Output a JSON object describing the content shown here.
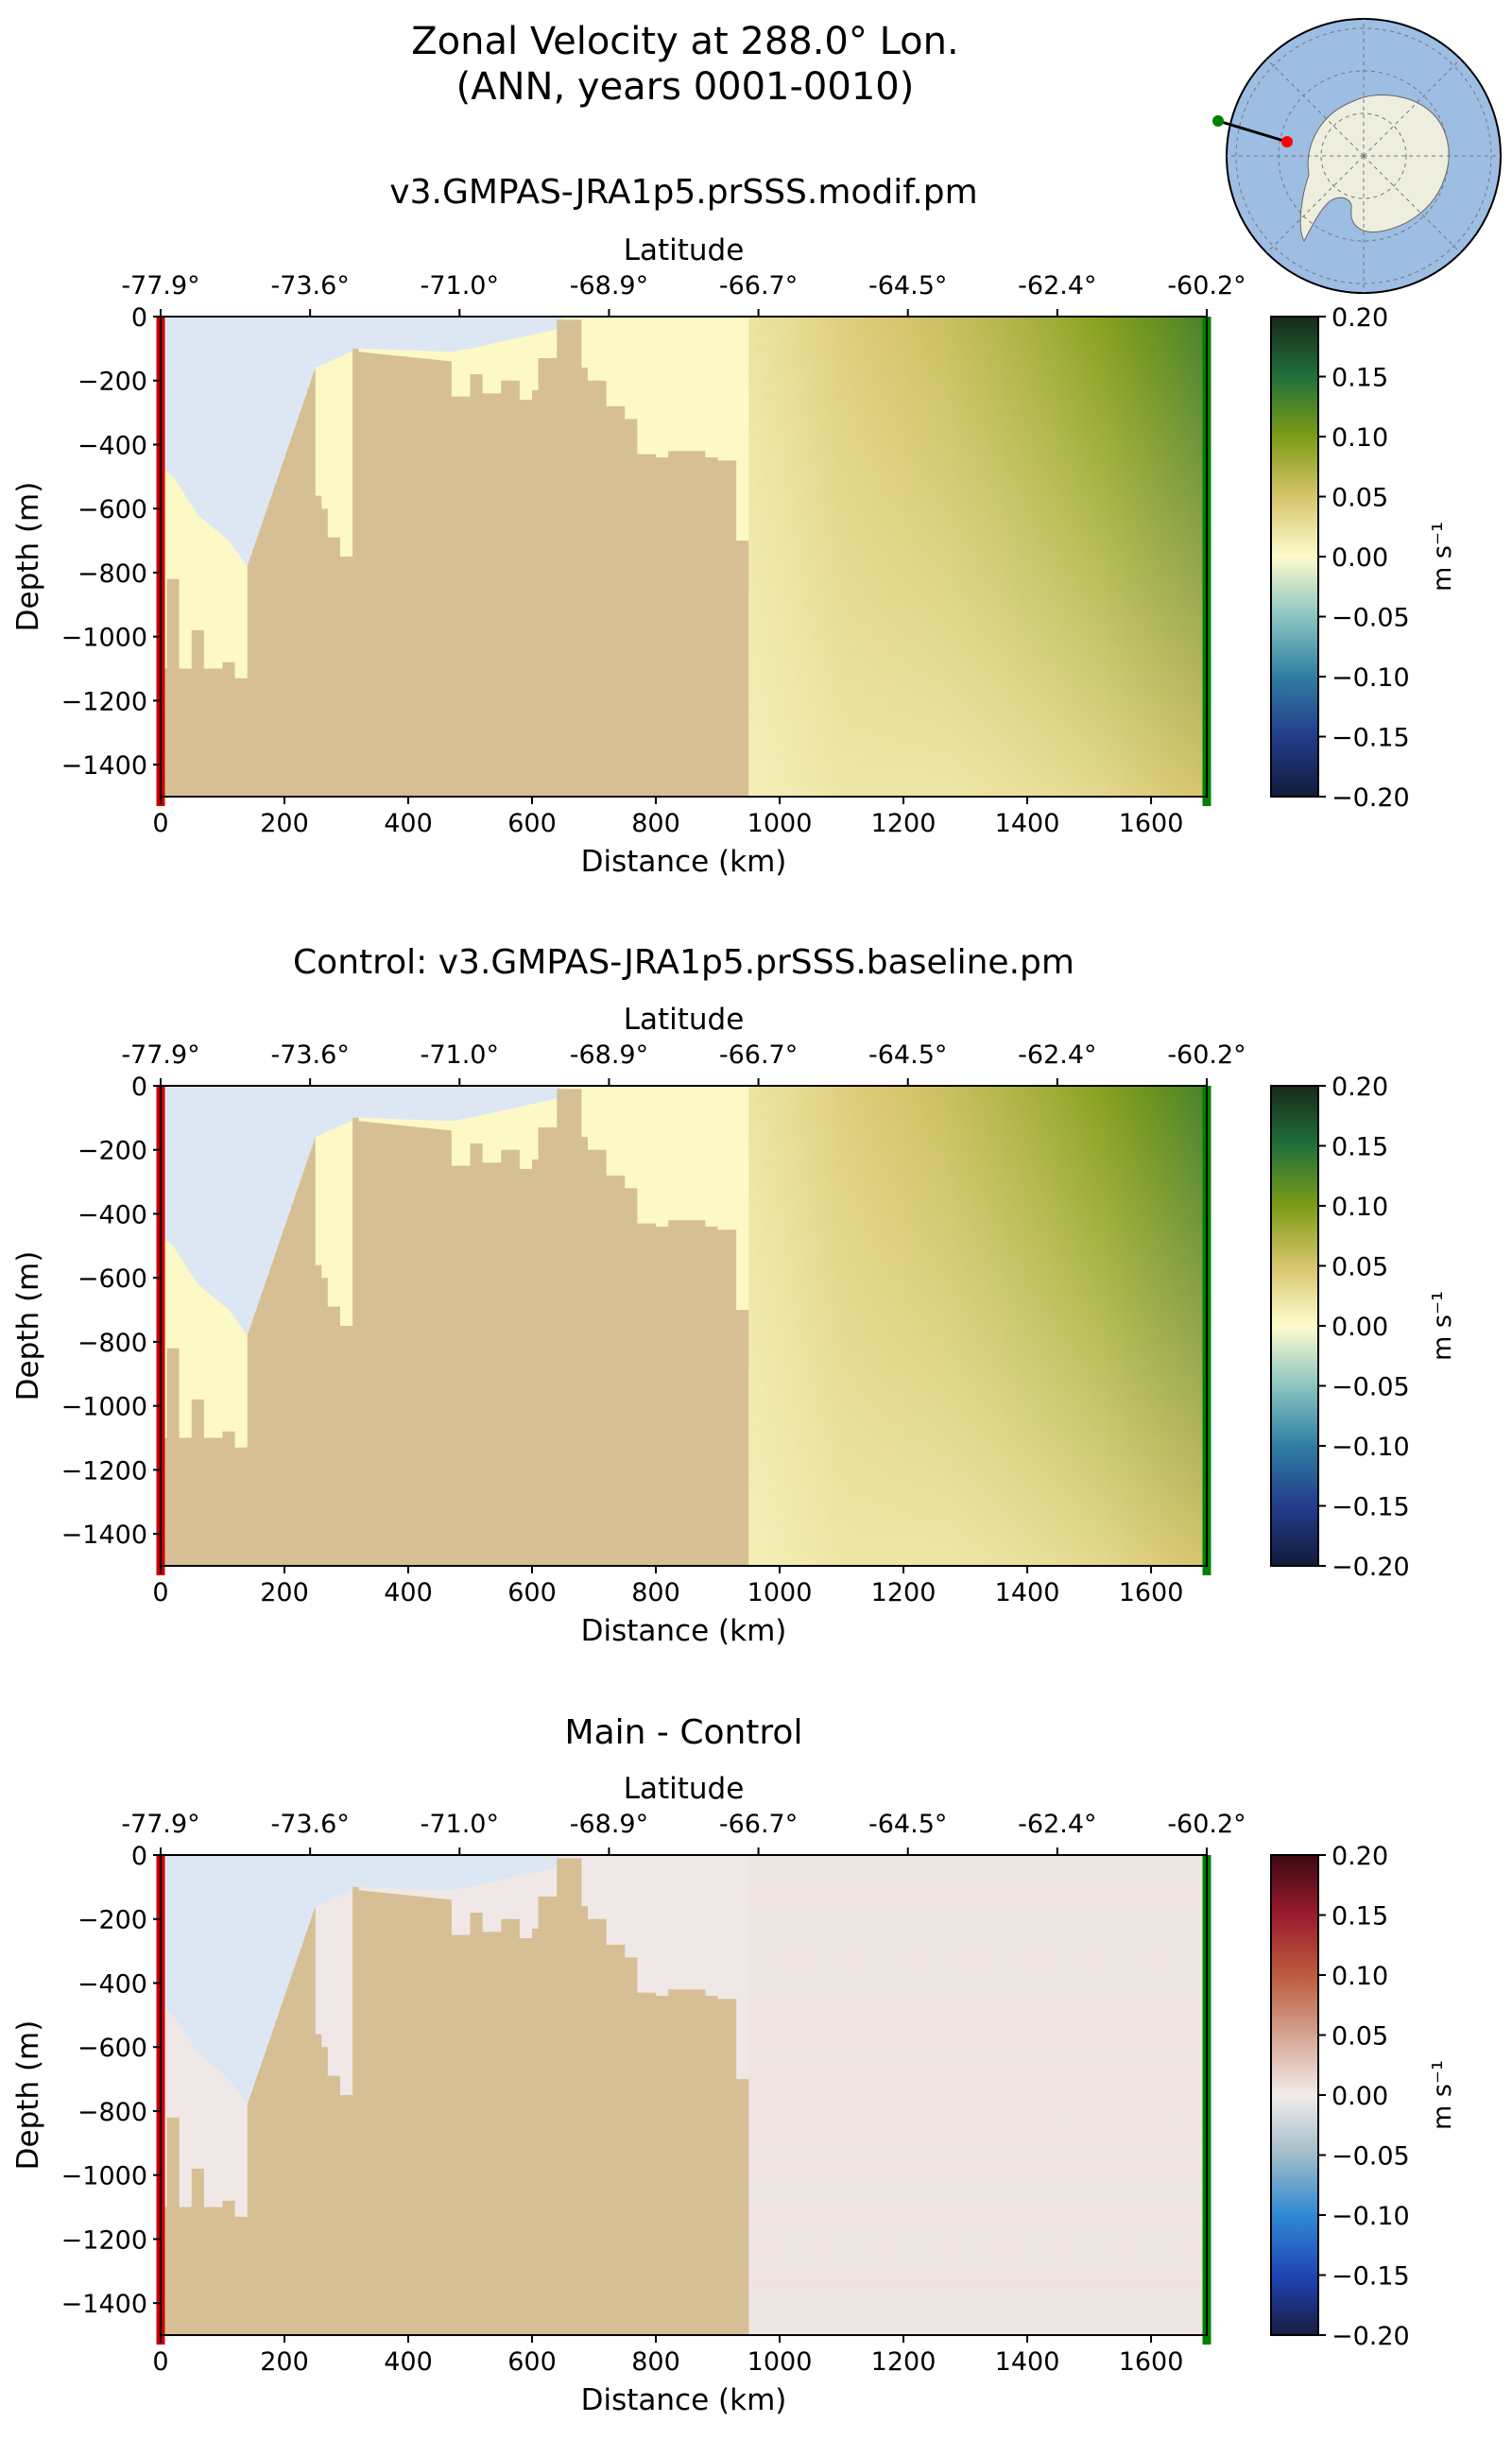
{
  "figure": {
    "title_line1": "Zonal Velocity at 288.0° Lon.",
    "title_line2": "(ANN, years 0001-0010)"
  },
  "inset_map": {
    "description_label": "transect-map",
    "start_color": "#008000",
    "end_color": "#ff0000"
  },
  "colors": {
    "land": "#d7bf95",
    "ice_shelf": "#dde7f4",
    "start_marker": "#008000",
    "end_marker": "#cc0000"
  },
  "chart_data": [
    {
      "type": "heatmap",
      "title": "v3.GMPAS-JRA1p5.prSSS.modif.pm",
      "xlabel": "Distance (km)",
      "ylabel": "Depth (m)",
      "top_xlabel": "Latitude",
      "xlim": [
        0,
        1690
      ],
      "ylim": [
        -1500,
        0
      ],
      "x_ticks": [
        "0",
        "200",
        "400",
        "600",
        "800",
        "1000",
        "1200",
        "1400",
        "1600"
      ],
      "y_ticks": [
        "0",
        "−200",
        "−400",
        "−600",
        "−800",
        "−1000",
        "−1200",
        "−1400"
      ],
      "lat_ticks": [
        "-77.9°",
        "-73.6°",
        "-71.0°",
        "-68.9°",
        "-66.7°",
        "-64.5°",
        "-62.4°",
        "-60.2°"
      ],
      "colorbar": {
        "label": "m s⁻¹",
        "range": [
          -0.2,
          0.2
        ],
        "ticks": [
          "0.20",
          "0.15",
          "0.10",
          "0.05",
          "0.00",
          "−0.05",
          "−0.10",
          "−0.15",
          "−0.20"
        ],
        "colormap": "cmocean-delta"
      },
      "velocity_profile_surface": {
        "distance_km": [
          950,
          1100,
          1300,
          1500,
          1690
        ],
        "value": [
          0.02,
          0.04,
          0.06,
          0.09,
          0.13
        ]
      },
      "velocity_profile_bottom": {
        "distance_km": [
          950,
          1100,
          1300,
          1500,
          1690
        ],
        "value": [
          0.01,
          0.02,
          0.02,
          0.03,
          0.05
        ]
      }
    },
    {
      "type": "heatmap",
      "title": "Control: v3.GMPAS-JRA1p5.prSSS.baseline.pm",
      "xlabel": "Distance (km)",
      "ylabel": "Depth (m)",
      "top_xlabel": "Latitude",
      "xlim": [
        0,
        1690
      ],
      "ylim": [
        -1500,
        0
      ],
      "x_ticks": [
        "0",
        "200",
        "400",
        "600",
        "800",
        "1000",
        "1200",
        "1400",
        "1600"
      ],
      "y_ticks": [
        "0",
        "−200",
        "−400",
        "−600",
        "−800",
        "−1000",
        "−1200",
        "−1400"
      ],
      "lat_ticks": [
        "-77.9°",
        "-73.6°",
        "-71.0°",
        "-68.9°",
        "-66.7°",
        "-64.5°",
        "-62.4°",
        "-60.2°"
      ],
      "colorbar": {
        "label": "m s⁻¹",
        "range": [
          -0.2,
          0.2
        ],
        "ticks": [
          "0.20",
          "0.15",
          "0.10",
          "0.05",
          "0.00",
          "−0.05",
          "−0.10",
          "−0.15",
          "−0.20"
        ],
        "colormap": "cmocean-delta"
      },
      "velocity_profile_surface": {
        "distance_km": [
          950,
          1100,
          1300,
          1500,
          1690
        ],
        "value": [
          0.02,
          0.04,
          0.06,
          0.09,
          0.13
        ]
      },
      "velocity_profile_bottom": {
        "distance_km": [
          950,
          1100,
          1300,
          1500,
          1690
        ],
        "value": [
          0.01,
          0.02,
          0.02,
          0.03,
          0.05
        ]
      }
    },
    {
      "type": "heatmap",
      "title": "Main - Control",
      "xlabel": "Distance (km)",
      "ylabel": "Depth (m)",
      "top_xlabel": "Latitude",
      "xlim": [
        0,
        1690
      ],
      "ylim": [
        -1500,
        0
      ],
      "x_ticks": [
        "0",
        "200",
        "400",
        "600",
        "800",
        "1000",
        "1200",
        "1400",
        "1600"
      ],
      "y_ticks": [
        "0",
        "−200",
        "−400",
        "−600",
        "−800",
        "−1000",
        "−1200",
        "−1400"
      ],
      "lat_ticks": [
        "-77.9°",
        "-73.6°",
        "-71.0°",
        "-68.9°",
        "-66.7°",
        "-64.5°",
        "-62.4°",
        "-60.2°"
      ],
      "colorbar": {
        "label": "m s⁻¹",
        "range": [
          -0.2,
          0.2
        ],
        "ticks": [
          "0.20",
          "0.15",
          "0.10",
          "0.05",
          "0.00",
          "−0.05",
          "−0.10",
          "−0.15",
          "−0.20"
        ],
        "colormap": "cmocean-balance"
      },
      "velocity_profile_surface": {
        "distance_km": [
          950,
          1690
        ],
        "value": [
          0.005,
          0.005
        ]
      },
      "velocity_profile_bottom": {
        "distance_km": [
          950,
          1690
        ],
        "value": [
          0.005,
          0.005
        ]
      }
    }
  ],
  "bathymetry": {
    "distance_km": [
      0,
      10,
      10,
      30,
      30,
      50,
      50,
      70,
      70,
      100,
      100,
      120,
      120,
      140,
      140,
      250,
      250,
      260,
      260,
      270,
      270,
      290,
      290,
      310,
      310,
      320,
      320,
      470,
      470,
      500,
      500,
      520,
      520,
      550,
      550,
      580,
      580,
      600,
      600,
      610,
      610,
      640,
      640,
      680,
      680,
      690,
      690,
      720,
      720,
      750,
      750,
      770,
      770,
      800,
      800,
      820,
      820,
      880,
      880,
      900,
      900,
      930,
      930,
      950,
      950
    ],
    "depth_m": [
      -1100,
      -1100,
      -820,
      -820,
      -1100,
      -1100,
      -980,
      -980,
      -1100,
      -1100,
      -1080,
      -1080,
      -1130,
      -1130,
      -780,
      -160,
      -560,
      -560,
      -600,
      -600,
      -690,
      -690,
      -750,
      -750,
      -100,
      -100,
      -110,
      -140,
      -250,
      -250,
      -180,
      -180,
      -240,
      -240,
      -200,
      -200,
      -260,
      -260,
      -230,
      -230,
      -130,
      -130,
      -10,
      -10,
      -160,
      -160,
      -200,
      -200,
      -280,
      -280,
      -320,
      -320,
      -430,
      -430,
      -440,
      -440,
      -420,
      -420,
      -440,
      -440,
      -450,
      -450,
      -700,
      -700,
      -1500
    ]
  },
  "ice_shelf": {
    "distance_km": [
      0,
      20,
      60,
      110,
      140,
      250,
      320,
      470,
      500,
      640,
      650
    ],
    "draft_m": [
      -470,
      -500,
      -620,
      -700,
      -780,
      -160,
      -100,
      -110,
      -100,
      -40,
      0
    ]
  }
}
